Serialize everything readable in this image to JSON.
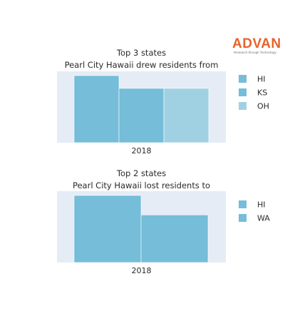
{
  "brand": {
    "name": "ADVAN",
    "tagline": "Research through Technology",
    "color": "#e8622c"
  },
  "chart_data": [
    {
      "type": "bar",
      "title_lines": [
        "Top 3 states",
        "Pearl City Hawaii drew residents from"
      ],
      "categories": [
        "2018"
      ],
      "series": [
        {
          "name": "HI",
          "values": [
            1.0
          ],
          "color": "#75bdd8"
        },
        {
          "name": "KS",
          "values": [
            0.81
          ],
          "color": "#75bdd8"
        },
        {
          "name": "OH",
          "values": [
            0.81
          ],
          "color": "#a0d1e3"
        }
      ],
      "legend_position": "right",
      "yaxis_visible": false,
      "plot_bg": "#e5ecf6"
    },
    {
      "type": "bar",
      "title_lines": [
        "Top 2 states",
        "Pearl City Hawaii lost residents to"
      ],
      "categories": [
        "2018"
      ],
      "series": [
        {
          "name": "HI",
          "values": [
            1.0
          ],
          "color": "#75bdd8"
        },
        {
          "name": "WA",
          "values": [
            0.71
          ],
          "color": "#75bdd8"
        }
      ],
      "legend_position": "right",
      "yaxis_visible": false,
      "plot_bg": "#e5ecf6"
    }
  ]
}
